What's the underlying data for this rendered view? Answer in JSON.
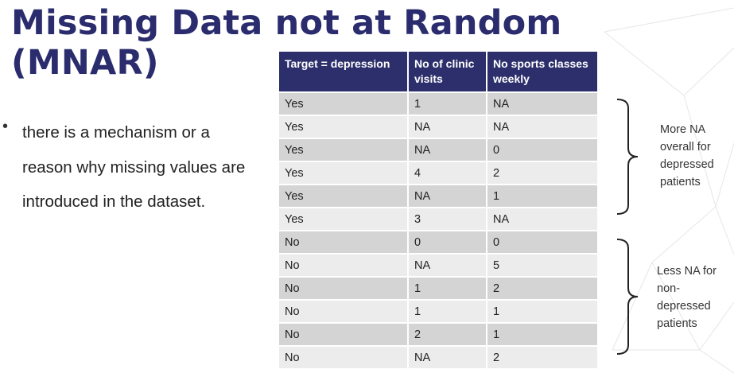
{
  "slide": {
    "title_line1": "Missing Data not at Random",
    "title_line2": "(MNAR)",
    "bullet_marker": "•",
    "bullet_text": "there is a mechanism or a reason why missing values are introduced in the dataset."
  },
  "table": {
    "headers": [
      "Target = depression",
      "No of clinic visits",
      "No sports classes weekly"
    ],
    "rows": [
      [
        "Yes",
        "1",
        "NA"
      ],
      [
        "Yes",
        "NA",
        "NA"
      ],
      [
        "Yes",
        "NA",
        "0"
      ],
      [
        "Yes",
        "4",
        "2"
      ],
      [
        "Yes",
        "NA",
        "1"
      ],
      [
        "Yes",
        "3",
        "NA"
      ],
      [
        "No",
        "0",
        "0"
      ],
      [
        "No",
        "NA",
        "5"
      ],
      [
        "No",
        "1",
        "2"
      ],
      [
        "No",
        "1",
        "1"
      ],
      [
        "No",
        "2",
        "1"
      ],
      [
        "No",
        "NA",
        "2"
      ]
    ]
  },
  "annotations": {
    "depressed": "More NA overall for depressed patients",
    "non_depressed": "Less NA for non-depressed patients"
  },
  "colors": {
    "title": "#2a2c6e",
    "header_bg": "#2c2f6b",
    "row_odd": "#d4d4d4",
    "row_even": "#ececec"
  }
}
